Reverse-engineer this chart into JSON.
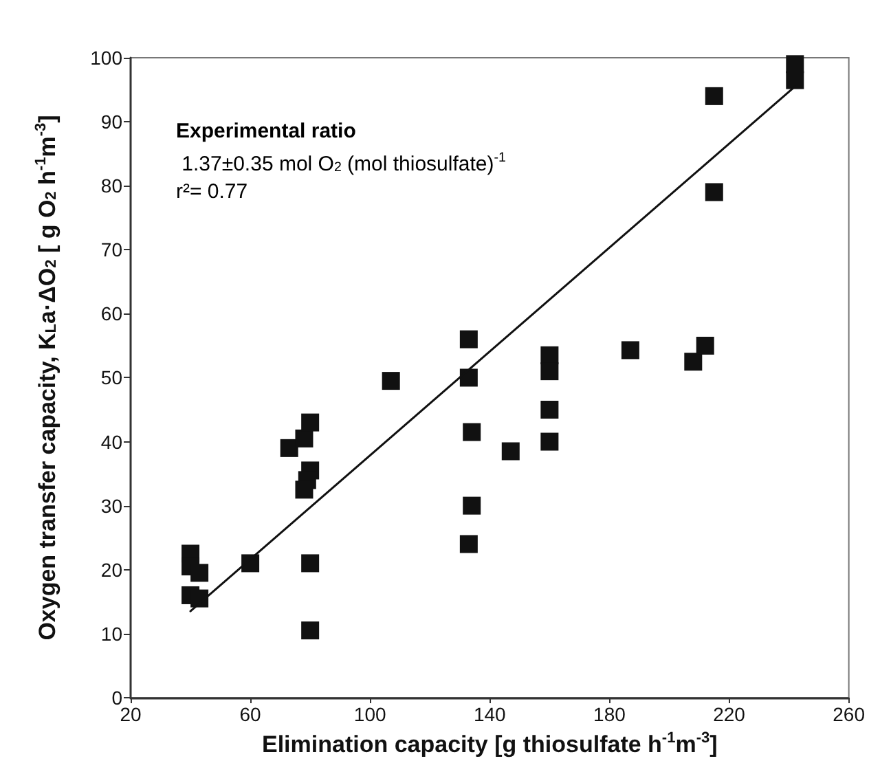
{
  "chart_data": {
    "type": "scatter",
    "xlabel": "Elimination capacity [g thiosulfate h$^{-1}$m$^{-3}$]",
    "ylabel": "Oxygen transfer capacity, K$_{L}$a·ΔO$_{2}$ [ g O$_{2}$ h$^{-1}$m$^{-3}$]",
    "annotations": [
      "Experimental ratio",
      " 1.37±0.35 mol O$_{2}$ (mol thiosulfate)$^{-1}$",
      "r²= 0.77"
    ],
    "series": [
      {
        "type": "scatter",
        "color": "#111111",
        "marker": "square",
        "x": [
          40,
          40,
          40,
          43,
          43,
          60,
          73,
          78,
          80,
          80,
          79,
          78,
          80,
          80,
          107,
          133,
          133,
          134,
          134,
          133,
          147,
          160,
          160,
          160,
          160,
          187,
          208,
          212,
          215,
          215,
          242,
          242
        ],
        "values": [
          22.5,
          20.5,
          16,
          19.5,
          15.5,
          21,
          39,
          40.5,
          43,
          35.5,
          34,
          32.5,
          21,
          10.5,
          49.5,
          56,
          50,
          41.5,
          30,
          24,
          38.5,
          53.5,
          51,
          45,
          40,
          54.3,
          52.5,
          55,
          94,
          79,
          99,
          96.5
        ]
      },
      {
        "type": "line",
        "color": "#111111",
        "marker": "none",
        "line_style": "solid",
        "x": [
          40,
          242
        ],
        "values": [
          13.5,
          95.5
        ]
      }
    ],
    "xlim": [
      20,
      260
    ],
    "xticks": [
      20,
      60,
      100,
      140,
      180,
      220,
      260
    ],
    "ylim": [
      0,
      100
    ],
    "yticks": [
      0,
      10,
      20,
      30,
      40,
      50,
      60,
      70,
      80,
      90,
      100
    ],
    "grid": false
  }
}
